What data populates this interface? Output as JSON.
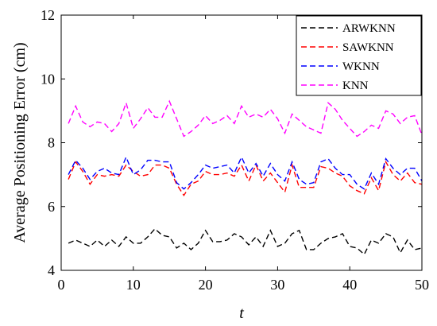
{
  "chart_data": {
    "type": "line",
    "title": "",
    "xlabel": "t",
    "ylabel": "Average Positioning  Error (cm)",
    "xlim": [
      0,
      50
    ],
    "ylim": [
      4,
      12
    ],
    "xticks": [
      0,
      10,
      20,
      30,
      40,
      50
    ],
    "yticks": [
      4,
      6,
      8,
      10,
      12
    ],
    "grid": false,
    "legend_position": "top-right",
    "x": [
      1,
      2,
      3,
      4,
      5,
      6,
      7,
      8,
      9,
      10,
      11,
      12,
      13,
      14,
      15,
      16,
      17,
      18,
      19,
      20,
      21,
      22,
      23,
      24,
      25,
      26,
      27,
      28,
      29,
      30,
      31,
      32,
      33,
      34,
      35,
      36,
      37,
      38,
      39,
      40,
      41,
      42,
      43,
      44,
      45,
      46,
      47,
      48,
      49,
      50
    ],
    "series": [
      {
        "name": "ARWKNN",
        "color": "#000000",
        "values": [
          4.85,
          4.95,
          4.85,
          4.75,
          4.95,
          4.75,
          4.95,
          4.75,
          5.05,
          4.85,
          4.85,
          5.05,
          5.3,
          5.1,
          5.05,
          4.7,
          4.85,
          4.65,
          4.85,
          5.25,
          4.9,
          4.9,
          4.95,
          5.15,
          5.05,
          4.8,
          5.05,
          4.75,
          5.25,
          4.75,
          4.85,
          5.15,
          5.25,
          4.65,
          4.65,
          4.85,
          5.0,
          5.05,
          5.15,
          4.75,
          4.7,
          4.5,
          4.95,
          4.85,
          5.15,
          5.05,
          4.55,
          4.95,
          4.65,
          4.7
        ]
      },
      {
        "name": "SAWKNN",
        "color": "#ff0000",
        "values": [
          6.85,
          7.4,
          7.1,
          6.7,
          7.0,
          6.95,
          7.0,
          6.95,
          7.3,
          7.1,
          6.95,
          7.0,
          7.3,
          7.3,
          7.2,
          6.7,
          6.35,
          6.7,
          6.8,
          7.1,
          7.0,
          7.0,
          7.05,
          6.95,
          7.3,
          6.8,
          7.3,
          6.8,
          7.05,
          6.75,
          6.45,
          7.3,
          6.6,
          6.6,
          6.6,
          7.25,
          7.2,
          7.05,
          6.95,
          6.65,
          6.5,
          6.4,
          6.9,
          6.5,
          7.4,
          7.0,
          6.8,
          7.05,
          6.75,
          6.7
        ]
      },
      {
        "name": "WKNN",
        "color": "#0000ff",
        "values": [
          7.0,
          7.45,
          7.2,
          6.85,
          7.1,
          7.2,
          7.05,
          7.0,
          7.55,
          7.0,
          7.15,
          7.45,
          7.45,
          7.4,
          7.4,
          6.75,
          6.55,
          6.75,
          7.0,
          7.3,
          7.2,
          7.25,
          7.3,
          7.05,
          7.55,
          7.05,
          7.35,
          6.95,
          7.35,
          7.0,
          6.8,
          7.4,
          6.85,
          6.7,
          6.75,
          7.4,
          7.5,
          7.2,
          7.0,
          7.0,
          6.7,
          6.55,
          7.05,
          6.7,
          7.5,
          7.2,
          7.0,
          7.2,
          7.2,
          6.8
        ]
      },
      {
        "name": "KNN",
        "color": "#ff00ff",
        "values": [
          8.6,
          9.15,
          8.65,
          8.5,
          8.65,
          8.6,
          8.35,
          8.6,
          9.25,
          8.45,
          8.75,
          9.1,
          8.8,
          8.8,
          9.3,
          8.75,
          8.2,
          8.35,
          8.55,
          8.85,
          8.6,
          8.7,
          8.85,
          8.6,
          9.15,
          8.8,
          8.9,
          8.8,
          9.05,
          8.75,
          8.3,
          8.9,
          8.7,
          8.5,
          8.4,
          8.3,
          9.25,
          9.05,
          8.7,
          8.45,
          8.2,
          8.35,
          8.55,
          8.45,
          9.0,
          8.9,
          8.6,
          8.8,
          8.85,
          8.25
        ]
      }
    ]
  }
}
